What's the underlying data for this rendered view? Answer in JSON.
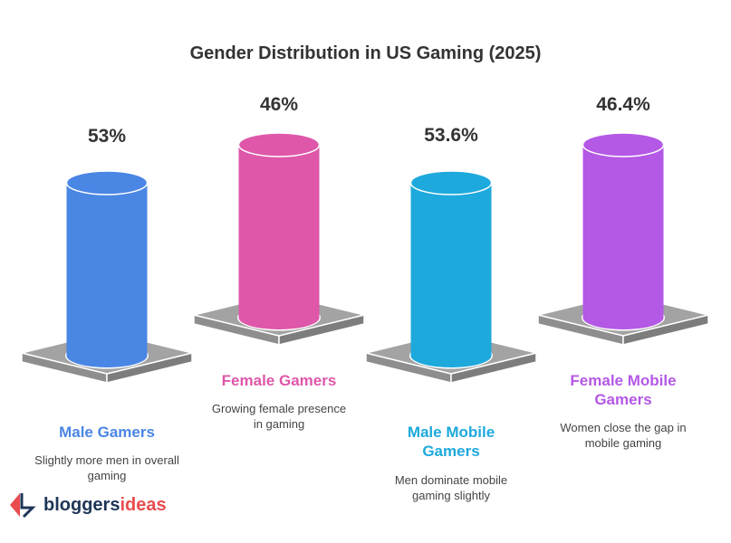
{
  "chart_data": {
    "type": "bar",
    "style": "3d-cylinder",
    "title": "Gender Distribution in US Gaming (2025)",
    "categories": [
      "Male Gamers",
      "Female Gamers",
      "Male Mobile Gamers",
      "Female Mobile Gamers"
    ],
    "values": [
      53,
      46,
      53.6,
      46.4
    ],
    "value_labels": [
      "53%",
      "46%",
      "53.6%",
      "46.4%"
    ],
    "descriptions": [
      "Slightly more men in overall gaming",
      "Growing female presence in gaming",
      "Men dominate mobile gaming slightly",
      "Women close the gap in mobile gaming"
    ],
    "colors": [
      "#4a86e4",
      "#de57a9",
      "#1ea9dc",
      "#b458e6"
    ]
  },
  "logo": {
    "part1": "bloggers",
    "part2": "ideas",
    "color1": "#1d3557",
    "color2": "#e84c4f"
  }
}
